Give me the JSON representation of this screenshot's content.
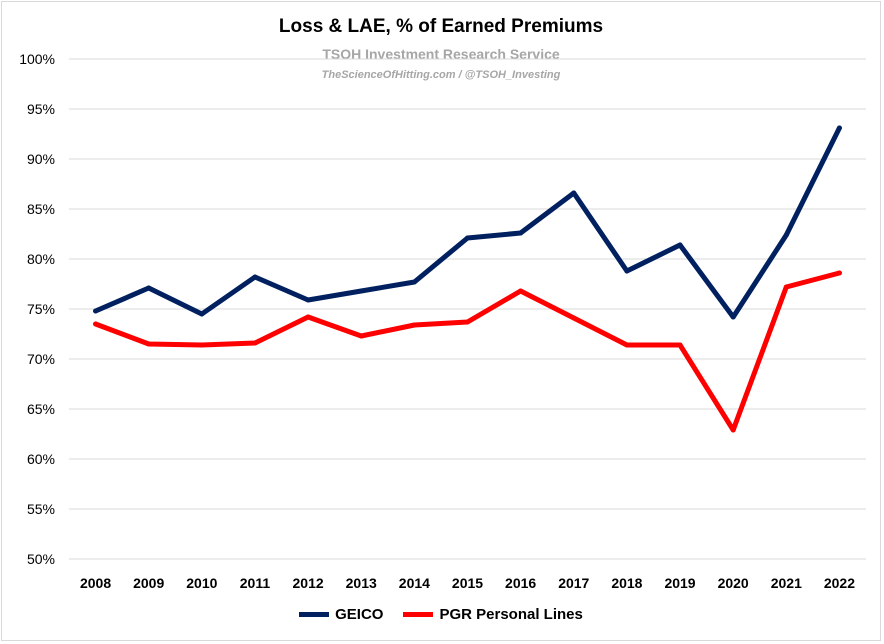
{
  "chart_data": {
    "type": "line",
    "title": "Loss & LAE, % of Earned Premiums",
    "subtitle": "TSOH Investment Research Service",
    "credit": "TheScienceOfHitting.com / @TSOH_Investing",
    "xlabel": "",
    "ylabel": "",
    "categories": [
      "2008",
      "2009",
      "2010",
      "2011",
      "2012",
      "2013",
      "2014",
      "2015",
      "2016",
      "2017",
      "2018",
      "2019",
      "2020",
      "2021",
      "2022"
    ],
    "y_ticks": [
      "100%",
      "95%",
      "90%",
      "85%",
      "80%",
      "75%",
      "70%",
      "65%",
      "60%",
      "55%",
      "50%"
    ],
    "ylim": [
      50,
      100
    ],
    "grid": true,
    "legend_position": "bottom",
    "series": [
      {
        "name": "GEICO",
        "color": "#002060",
        "values": [
          74.8,
          77.1,
          74.5,
          78.2,
          75.9,
          76.8,
          77.7,
          82.1,
          82.6,
          86.6,
          78.8,
          81.4,
          74.2,
          82.4,
          93.1
        ]
      },
      {
        "name": "PGR Personal Lines",
        "color": "#ff0000",
        "values": [
          73.5,
          71.5,
          71.4,
          71.6,
          74.2,
          72.3,
          73.4,
          73.7,
          76.8,
          74.1,
          71.4,
          71.4,
          62.9,
          77.2,
          78.6
        ]
      }
    ]
  }
}
